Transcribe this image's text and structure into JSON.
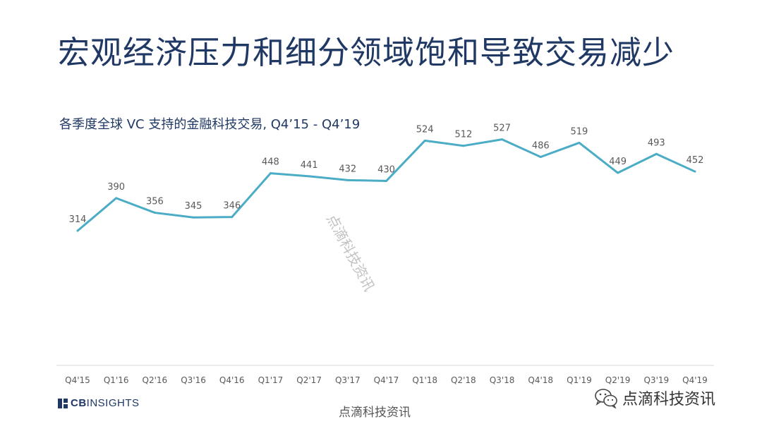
{
  "page": {
    "title": "宏观经济压力和细分领域饱和导致交易减少"
  },
  "chart_data": {
    "type": "line",
    "title": "各季度全球 VC 支持的金融科技交易, Q4’15 -  Q4’19",
    "categories": [
      "Q4'15",
      "Q1'16",
      "Q2'16",
      "Q3'16",
      "Q4'16",
      "Q1'17",
      "Q2'17",
      "Q3'17",
      "Q4'17",
      "Q1'18",
      "Q2'18",
      "Q3'18",
      "Q4'18",
      "Q1'19",
      "Q2'19",
      "Q3'19",
      "Q4'19"
    ],
    "series": [
      {
        "values": [
          314,
          390,
          356,
          345,
          346,
          448,
          441,
          432,
          430,
          524,
          512,
          527,
          486,
          519,
          449,
          493,
          452
        ]
      }
    ],
    "ylim": [
      0,
      560
    ],
    "grid": false,
    "line_color": "#4bacc6",
    "axis_color": "#d9d9d9"
  },
  "footer": {
    "logo_cb": "CB",
    "logo_insights": "INSIGHTS",
    "watermark_bottom": "点滴科技资讯",
    "watermark_diagonal": "点滴科技资讯",
    "wechat_label": "点滴科技资讯",
    "wechat_icon": "wechat-icon"
  }
}
